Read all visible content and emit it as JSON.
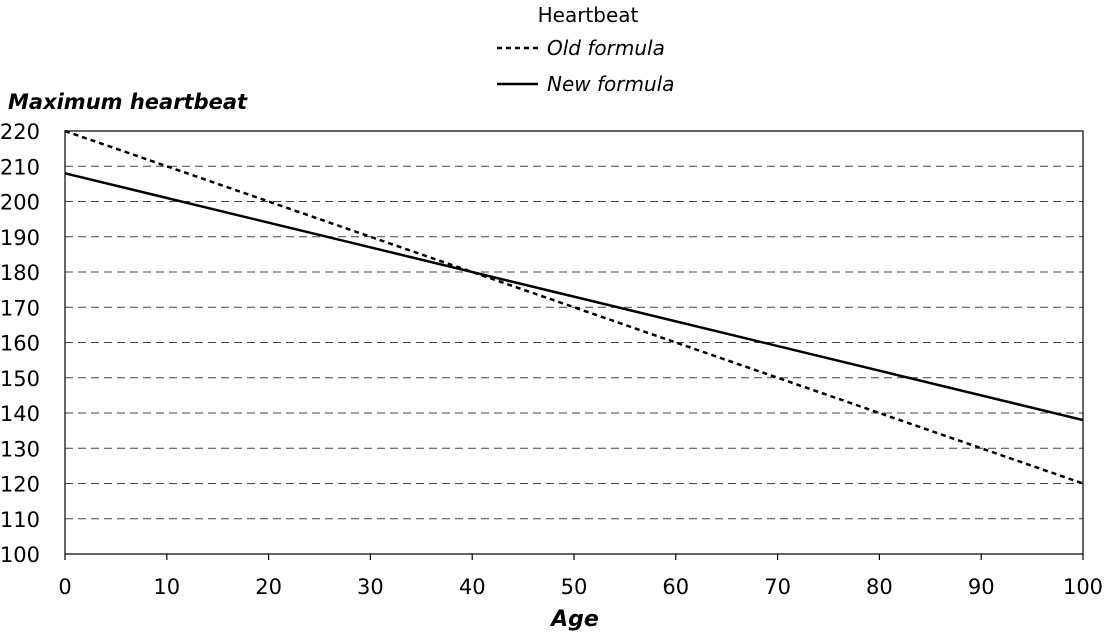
{
  "chart_data": {
    "type": "line",
    "xlabel": "Age",
    "ylabel": "Maximum heartbeat",
    "xlim": [
      0,
      100
    ],
    "ylim": [
      100,
      220
    ],
    "x_ticks": [
      0,
      10,
      20,
      30,
      40,
      50,
      60,
      70,
      80,
      90,
      100
    ],
    "y_ticks": [
      100,
      110,
      120,
      130,
      140,
      150,
      160,
      170,
      180,
      190,
      200,
      210,
      220
    ],
    "grid": "horizontal-dashed",
    "legend": {
      "title": "Heartbeat",
      "placement": "top-center",
      "entries": [
        "Old formula",
        "New formula"
      ]
    },
    "series": [
      {
        "name": "Old formula",
        "style": "dashed",
        "x": [
          0,
          100
        ],
        "y": [
          220,
          120
        ]
      },
      {
        "name": "New formula",
        "style": "solid",
        "x": [
          0,
          100
        ],
        "y": [
          208,
          138
        ]
      }
    ],
    "colors": {
      "line": "#000000",
      "grid": "#444444",
      "background": "#ffffff"
    }
  }
}
